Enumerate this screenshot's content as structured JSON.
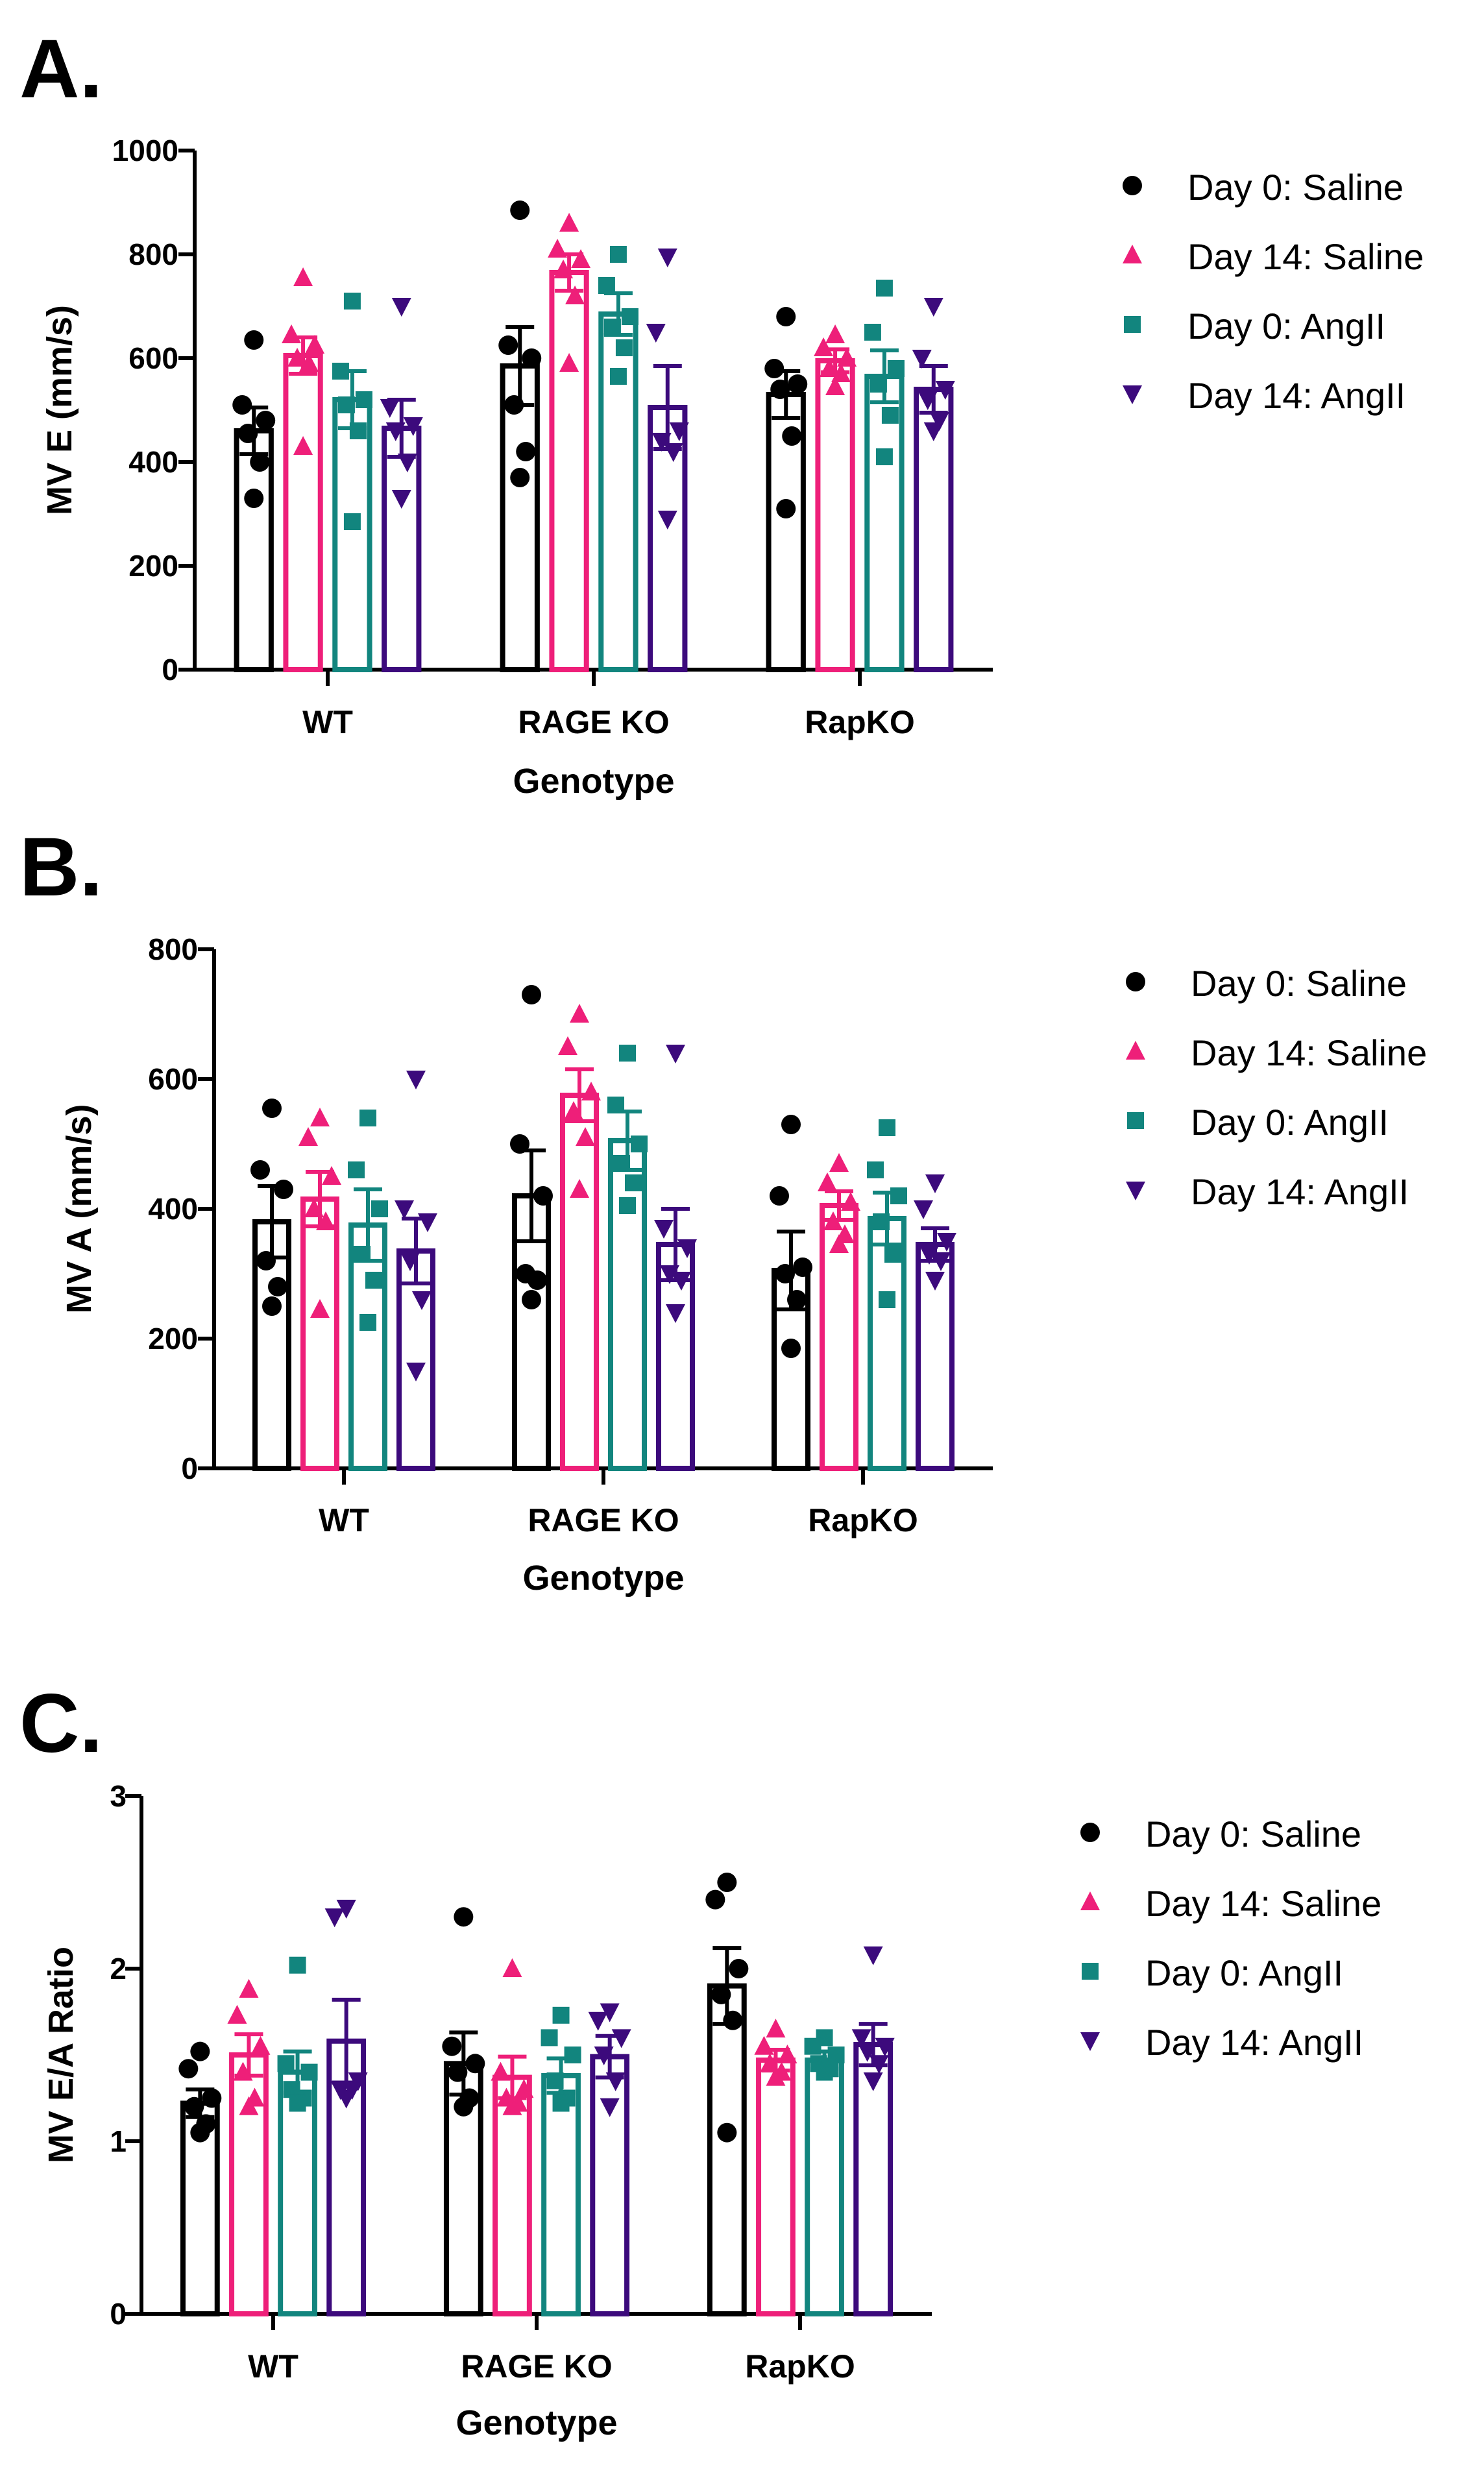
{
  "colors": {
    "Day 0: Saline": "#000000",
    "Day 14: Saline": "#ee1f79",
    "Day 0: AngII": "#12857e",
    "Day 14: AngII": "#3c0a7c"
  },
  "markers": {
    "Day 0: Saline": "circle",
    "Day 14: Saline": "triangle-up",
    "Day 0: AngII": "square",
    "Day 14: AngII": "triangle-down"
  },
  "chart_data": [
    {
      "panel": "A.",
      "type": "bar",
      "ylabel": "MV E (mm/s)",
      "xlabel": "Genotype",
      "categories": [
        "WT",
        "RAGE KO",
        "RapKO"
      ],
      "ylim": [
        0,
        1000
      ],
      "yticks": [
        0,
        200,
        400,
        600,
        800,
        1000
      ],
      "legend": [
        "Day 0: Saline",
        "Day 14: Saline",
        "Day 0: AngII",
        "Day 14: AngII"
      ],
      "series": [
        {
          "name": "Day 0: Saline",
          "values": [
            460,
            585,
            530
          ],
          "sem": [
            45,
            75,
            45
          ],
          "points": [
            [
              635,
              510,
              480,
              455,
              400,
              330
            ],
            [
              885,
              625,
              600,
              510,
              420,
              370
            ],
            [
              680,
              580,
              550,
              540,
              450,
              310
            ]
          ]
        },
        {
          "name": "Day 14: Saline",
          "values": [
            605,
            765,
            595
          ],
          "sem": [
            35,
            35,
            22
          ],
          "points": [
            [
              755,
              645,
              625,
              600,
              590,
              430
            ],
            [
              860,
              810,
              790,
              770,
              720,
              590
            ],
            [
              645,
              620,
              600,
              580,
              570,
              545
            ]
          ]
        },
        {
          "name": "Day 0: AngII",
          "values": [
            520,
            685,
            565
          ],
          "sem": [
            55,
            40,
            50
          ],
          "points": [
            [
              710,
              575,
              520,
              510,
              460,
              285
            ],
            [
              800,
              740,
              680,
              660,
              620,
              565
            ],
            [
              735,
              650,
              580,
              550,
              490,
              410
            ]
          ]
        },
        {
          "name": "Day 14: AngII",
          "values": [
            465,
            505,
            540
          ],
          "sem": [
            55,
            80,
            45
          ],
          "points": [
            [
              700,
              505,
              470,
              460,
              400,
              330
            ],
            [
              795,
              650,
              460,
              440,
              420,
              290
            ],
            [
              700,
              600,
              540,
              520,
              480,
              460
            ]
          ]
        }
      ]
    },
    {
      "panel": "B.",
      "type": "bar",
      "ylabel": "MV A (mm/s)",
      "xlabel": "Genotype",
      "categories": [
        "WT",
        "RAGE KO",
        "RapKO"
      ],
      "ylim": [
        0,
        800
      ],
      "yticks": [
        0,
        200,
        400,
        600,
        800
      ],
      "legend": [
        "Day 0: Saline",
        "Day 14: Saline",
        "Day 0: AngII",
        "Day 14: AngII"
      ],
      "series": [
        {
          "name": "Day 0: Saline",
          "values": [
            380,
            420,
            305
          ],
          "sem": [
            55,
            70,
            60
          ],
          "points": [
            [
              555,
              460,
              430,
              320,
              280,
              250
            ],
            [
              730,
              500,
              420,
              300,
              290,
              260
            ],
            [
              530,
              420,
              310,
              300,
              260,
              185
            ]
          ]
        },
        {
          "name": "Day 14: Saline",
          "values": [
            415,
            575,
            405
          ],
          "sem": [
            42,
            40,
            22
          ],
          "points": [
            [
              540,
              510,
              450,
              400,
              380,
              245
            ],
            [
              700,
              650,
              580,
              550,
              510,
              430
            ],
            [
              470,
              440,
              410,
              380,
              360,
              345
            ]
          ]
        },
        {
          "name": "Day 0: AngII",
          "values": [
            375,
            505,
            385
          ],
          "sem": [
            55,
            45,
            40
          ],
          "points": [
            [
              540,
              460,
              400,
              330,
              290,
              225
            ],
            [
              640,
              560,
              500,
              470,
              440,
              405
            ],
            [
              525,
              460,
              420,
              380,
              330,
              260
            ]
          ]
        },
        {
          "name": "Day 14: AngII",
          "values": [
            335,
            345,
            345
          ],
          "sem": [
            50,
            55,
            25
          ],
          "points": [
            [
              600,
              400,
              380,
              320,
              260,
              150
            ],
            [
              640,
              370,
              340,
              300,
              290,
              240
            ],
            [
              440,
              400,
              350,
              330,
              320,
              290
            ]
          ]
        }
      ]
    },
    {
      "panel": "C.",
      "type": "bar",
      "ylabel": "MV E/A Ratio",
      "xlabel": "Genotype",
      "categories": [
        "WT",
        "RAGE KO",
        "RapKO"
      ],
      "ylim": [
        0,
        3
      ],
      "yticks": [
        0,
        1,
        2,
        3
      ],
      "legend": [
        "Day 0: Saline",
        "Day 14: Saline",
        "Day 0: AngII",
        "Day 14: AngII"
      ],
      "series": [
        {
          "name": "Day 0: Saline",
          "values": [
            1.22,
            1.45,
            1.9
          ],
          "sem": [
            0.08,
            0.18,
            0.22
          ],
          "points": [
            [
              1.52,
              1.42,
              1.25,
              1.2,
              1.1,
              1.05
            ],
            [
              2.3,
              1.55,
              1.45,
              1.4,
              1.25,
              1.2
            ],
            [
              2.5,
              2.4,
              2.0,
              1.85,
              1.7,
              1.05
            ]
          ]
        },
        {
          "name": "Day 14: Saline",
          "values": [
            1.5,
            1.37,
            1.47
          ],
          "sem": [
            0.12,
            0.12,
            0.06
          ],
          "points": [
            [
              1.88,
              1.73,
              1.55,
              1.4,
              1.25,
              1.2
            ],
            [
              2.0,
              1.4,
              1.3,
              1.25,
              1.22,
              1.2
            ],
            [
              1.65,
              1.55,
              1.5,
              1.45,
              1.4,
              1.37
            ]
          ]
        },
        {
          "name": "Day 0: AngII",
          "values": [
            1.4,
            1.38,
            1.47
          ],
          "sem": [
            0.12,
            0.1,
            0.05
          ],
          "points": [
            [
              2.02,
              1.45,
              1.4,
              1.3,
              1.25,
              1.22
            ],
            [
              1.73,
              1.6,
              1.5,
              1.35,
              1.25,
              1.22
            ],
            [
              1.6,
              1.55,
              1.5,
              1.45,
              1.42,
              1.4
            ]
          ]
        },
        {
          "name": "Day 14: AngII",
          "values": [
            1.58,
            1.49,
            1.56
          ],
          "sem": [
            0.24,
            0.12,
            0.12
          ],
          "points": [
            [
              2.35,
              2.3,
              1.35,
              1.3,
              1.3,
              1.25
            ],
            [
              1.75,
              1.7,
              1.6,
              1.5,
              1.35,
              1.2
            ],
            [
              2.08,
              1.6,
              1.55,
              1.52,
              1.45,
              1.35
            ]
          ]
        }
      ]
    }
  ]
}
